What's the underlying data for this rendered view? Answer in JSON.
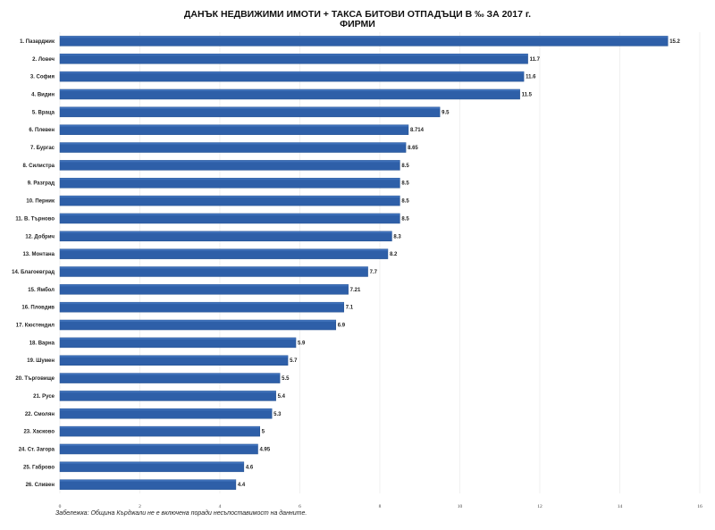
{
  "chart_data": {
    "type": "bar",
    "orientation": "horizontal",
    "title": "ДАНЪК НЕДВИЖИМИ ИМОТИ + ТАКСА БИТОВИ ОТПАДЪЦИ В ‰ ЗА 2017 г.",
    "subtitle": "ФИРМИ",
    "xlabel": "",
    "ylabel": "",
    "xlim": [
      0,
      16
    ],
    "x_ticks": [
      "0",
      "2",
      "4",
      "6",
      "8",
      "10",
      "12",
      "14",
      "16"
    ],
    "grid": true,
    "bar_color": "#2e5fa8",
    "categories": [
      "1. Пазарджик",
      "2. Ловеч",
      "3. София",
      "4. Видин",
      "5. Враца",
      "6. Плевен",
      "7. Бургас",
      "8. Силистра",
      "9. Разград",
      "10. Перник",
      "11. В. Търново",
      "12. Добрич",
      "13. Монтана",
      "14. Благоевград",
      "15. Ямбол",
      "16. Пловдив",
      "17. Кюстендил",
      "18. Варна",
      "19. Шумен",
      "20. Търговище",
      "21. Русе",
      "22. Смолян",
      "23. Хасково",
      "24. Ст. Загора",
      "25. Габрово",
      "26. Сливен"
    ],
    "values": [
      15.2,
      11.7,
      11.6,
      11.5,
      9.5,
      8.714,
      8.65,
      8.5,
      8.5,
      8.5,
      8.5,
      8.3,
      8.2,
      7.7,
      7.21,
      7.1,
      6.9,
      5.9,
      5.7,
      5.5,
      5.4,
      5.3,
      5,
      4.95,
      4.6,
      4.4
    ],
    "value_labels": [
      "15.2",
      "11.7",
      "11.6",
      "11.5",
      "9.5",
      "8.714",
      "8.65",
      "8.5",
      "8.5",
      "8.5",
      "8.5",
      "8.3",
      "8.2",
      "7.7",
      "7.21",
      "7.1",
      "6.9",
      "5.9",
      "5.7",
      "5.5",
      "5.4",
      "5.3",
      "5",
      "4.95",
      "4.6",
      "4.4"
    ],
    "annotation": "Забележка: Община Кърджали не е включена поради несъпоставимост на данните."
  }
}
